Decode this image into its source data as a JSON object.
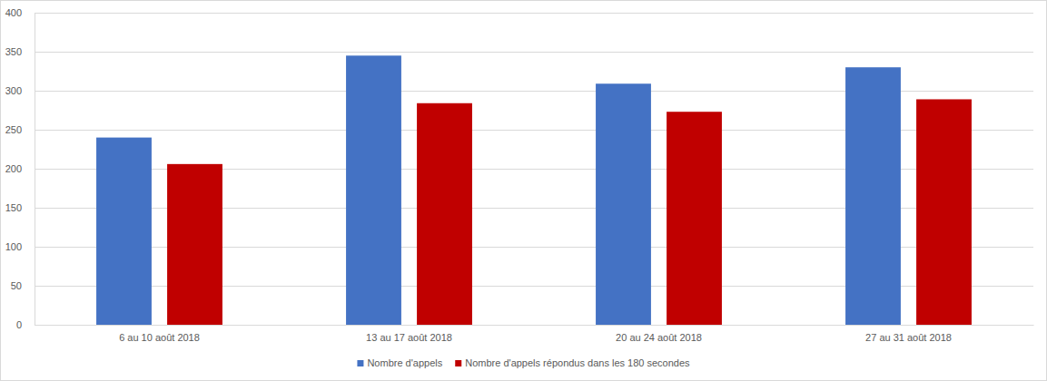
{
  "chart_data": {
    "type": "bar",
    "categories": [
      "6 au 10 août 2018",
      "13 au 17 août 2018",
      "20 au 24 août 2018",
      "27 au 31 août 2018"
    ],
    "series": [
      {
        "name": "Nombre d'appels",
        "color": "#4472c4",
        "values": [
          240,
          345,
          309,
          330
        ]
      },
      {
        "name": "Nombre d'appels répondus dans les 180 secondes",
        "color": "#c00000",
        "values": [
          206,
          284,
          273,
          289
        ]
      }
    ],
    "ylim": [
      0,
      400
    ],
    "yticks": [
      0,
      50,
      100,
      150,
      200,
      250,
      300,
      350,
      400
    ],
    "grid": true,
    "legend": "bottom"
  }
}
